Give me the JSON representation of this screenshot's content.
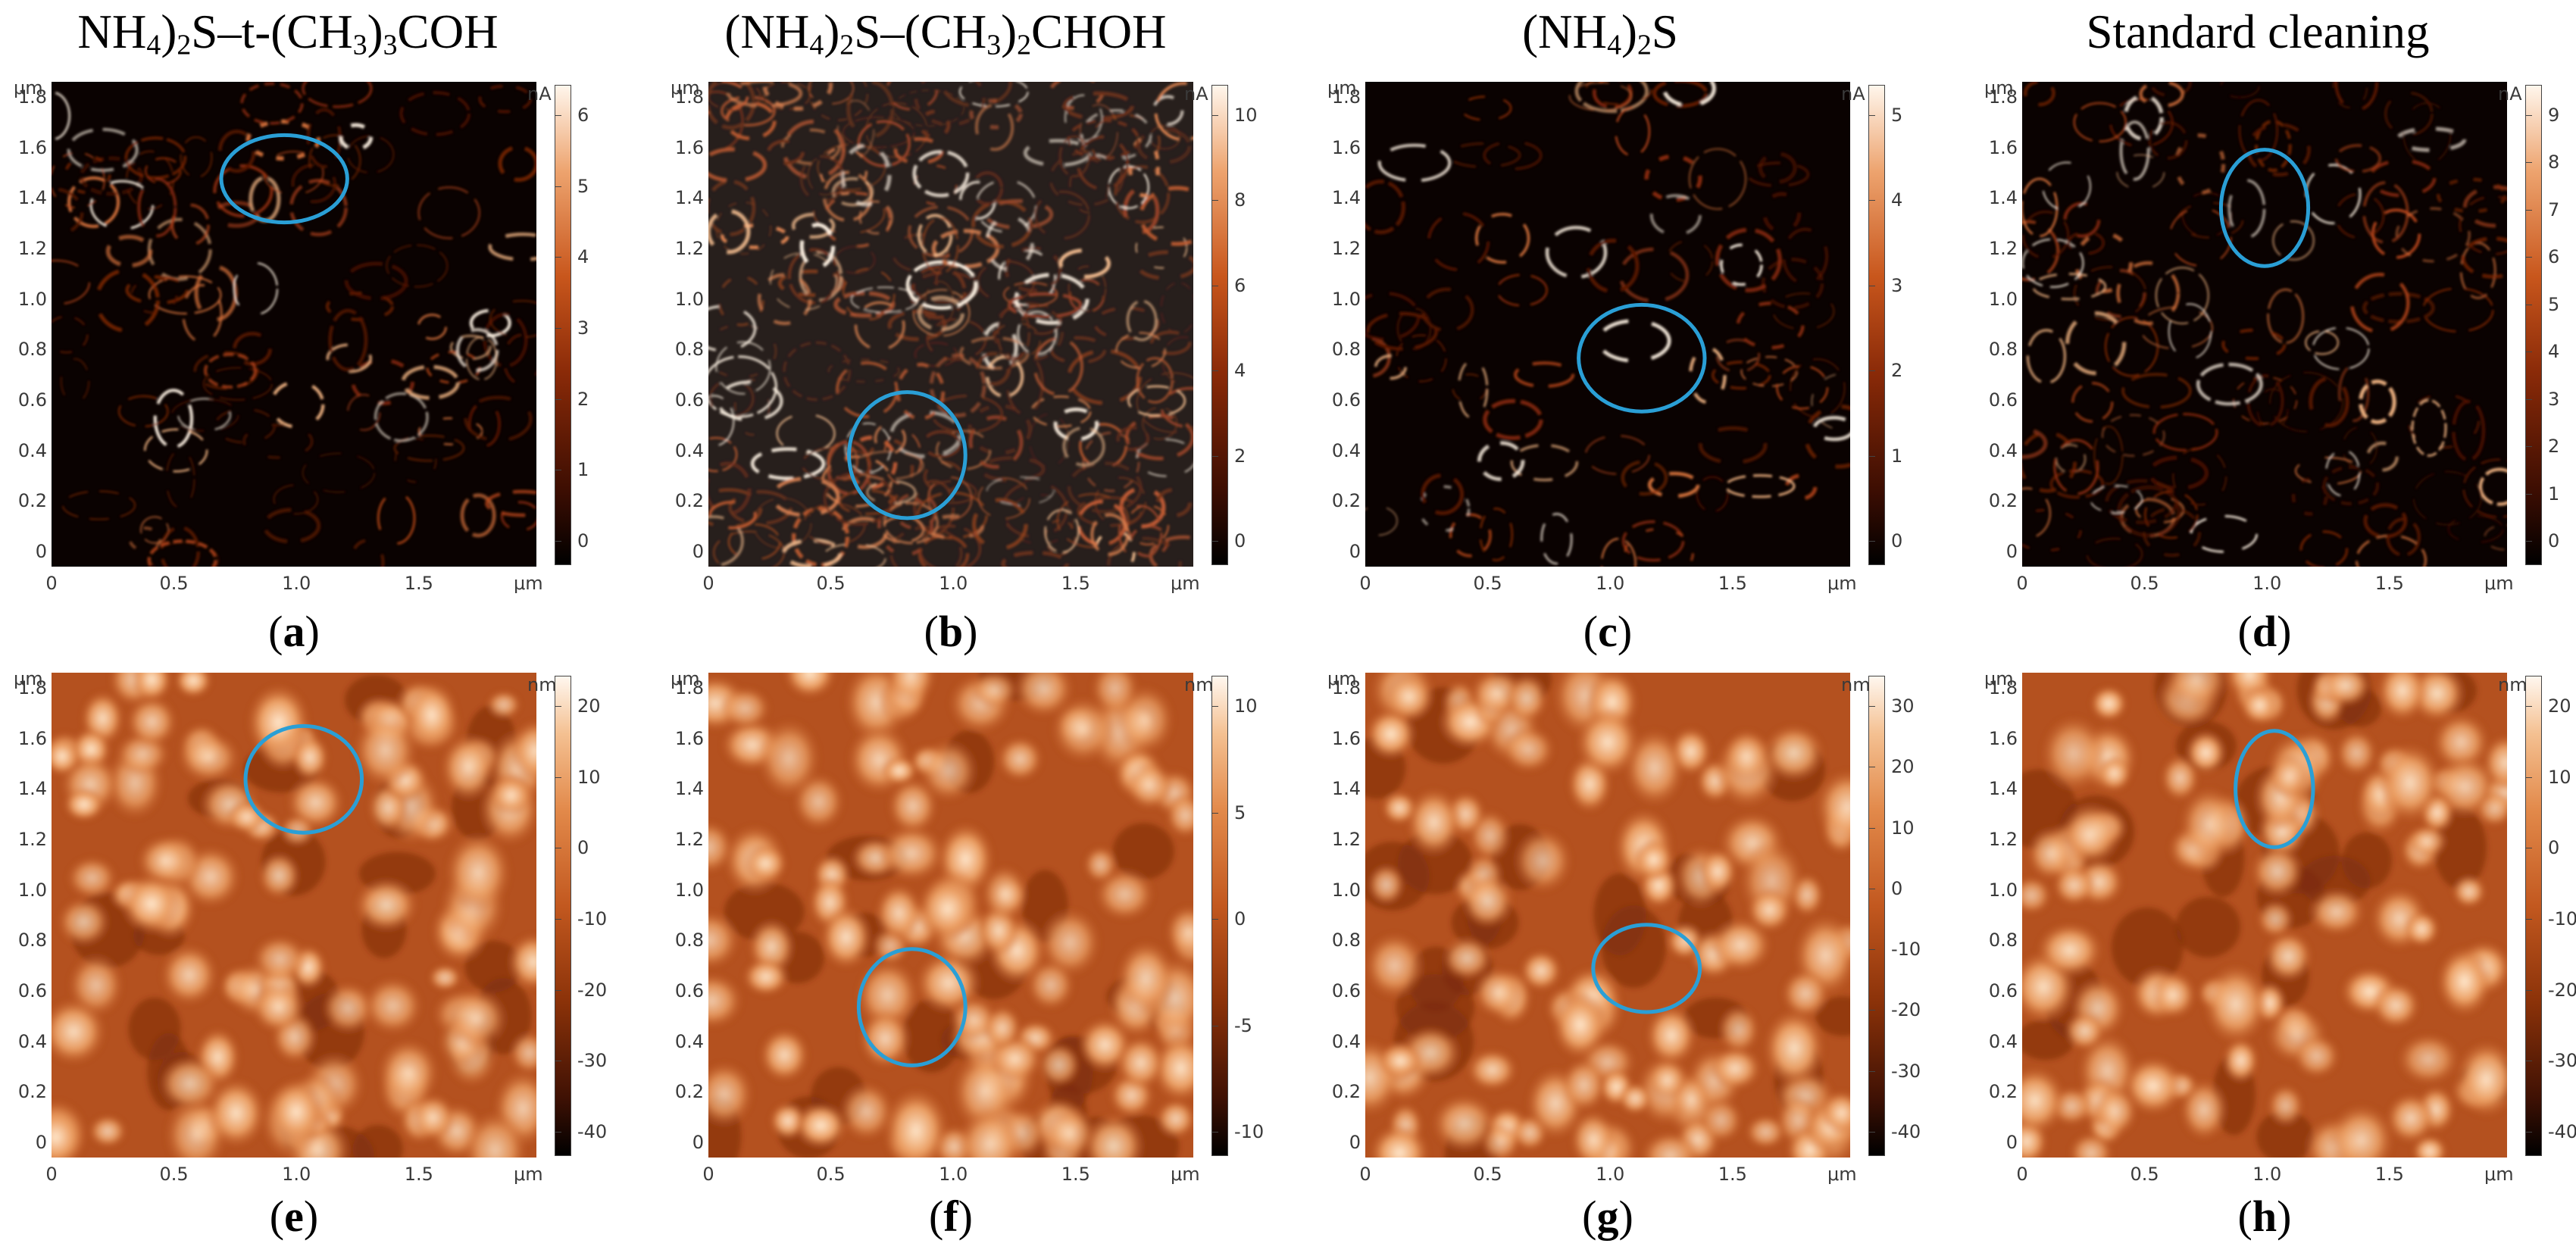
{
  "columns": [
    {
      "title_parts": [
        "NH",
        "4",
        ")",
        "2",
        "S–t-(CH",
        "3",
        ")",
        "3",
        "COH"
      ]
    },
    {
      "title_parts": [
        "(NH",
        "4",
        ")",
        "2",
        "S–(CH",
        "3",
        ")",
        "2",
        "CHOH"
      ]
    },
    {
      "title_parts": [
        "(NH",
        "4",
        ")",
        "2",
        "S"
      ]
    },
    {
      "title_parts": [
        "Standard cleaning"
      ]
    }
  ],
  "axis": {
    "unit": "μm",
    "y_ticks": [
      "1.8",
      "1.6",
      "1.4",
      "1.2",
      "1.0",
      "0.8",
      "0.6",
      "0.4",
      "0.2",
      "0"
    ],
    "x_ticks": [
      "0",
      "0.5",
      "1.0",
      "1.5"
    ]
  },
  "panels": [
    {
      "id": "a",
      "label_open": "(",
      "label_letter": "a",
      "label_close": ")",
      "kind": "current",
      "cbar_unit": "nA",
      "cbar_ticks": [
        "6",
        "5",
        "4",
        "3",
        "2",
        "1",
        "0"
      ],
      "highlight_shape": "ellipse"
    },
    {
      "id": "b",
      "label_open": "(",
      "label_letter": "b",
      "label_close": ")",
      "kind": "current",
      "cbar_unit": "nA",
      "cbar_ticks": [
        "10",
        "8",
        "6",
        "4",
        "2",
        "0"
      ],
      "highlight_shape": "ellipse"
    },
    {
      "id": "c",
      "label_open": "(",
      "label_letter": "c",
      "label_close": ")",
      "kind": "current",
      "cbar_unit": "nA",
      "cbar_ticks": [
        "5",
        "4",
        "3",
        "2",
        "1",
        "0"
      ],
      "highlight_shape": "ellipse"
    },
    {
      "id": "d",
      "label_open": "(",
      "label_letter": "d",
      "label_close": ")",
      "kind": "current",
      "cbar_unit": "nA",
      "cbar_ticks": [
        "9",
        "8",
        "7",
        "6",
        "5",
        "4",
        "3",
        "2",
        "1",
        "0"
      ],
      "highlight_shape": "ellipse"
    },
    {
      "id": "e",
      "label_open": "(",
      "label_letter": "e",
      "label_close": ")",
      "kind": "height",
      "cbar_unit": "nm",
      "cbar_ticks": [
        "20",
        "10",
        "0",
        "-10",
        "-20",
        "-30",
        "-40"
      ],
      "highlight_shape": "ellipse"
    },
    {
      "id": "f",
      "label_open": "(",
      "label_letter": "f",
      "label_close": ")",
      "kind": "height",
      "cbar_unit": "nm",
      "cbar_ticks": [
        "10",
        "5",
        "0",
        "-5",
        "-10"
      ],
      "highlight_shape": "ellipse"
    },
    {
      "id": "g",
      "label_open": "(",
      "label_letter": "g",
      "label_close": ")",
      "kind": "height",
      "cbar_unit": "nm",
      "cbar_ticks": [
        "30",
        "20",
        "10",
        "0",
        "-10",
        "-20",
        "-30",
        "-40"
      ],
      "highlight_shape": "ellipse"
    },
    {
      "id": "h",
      "label_open": "(",
      "label_letter": "h",
      "label_close": ")",
      "kind": "height",
      "cbar_unit": "nm",
      "cbar_ticks": [
        "20",
        "10",
        "0",
        "-10",
        "-20",
        "-30",
        "-40"
      ],
      "highlight_shape": "ellipse"
    }
  ],
  "colors": {
    "highlight": "#2a9fd6",
    "current_dark": "#000000",
    "current_mid": "#8a2a08",
    "current_bright": "#fff6ec",
    "height_base": "#c8632a",
    "height_bright": "#fff4e6"
  }
}
